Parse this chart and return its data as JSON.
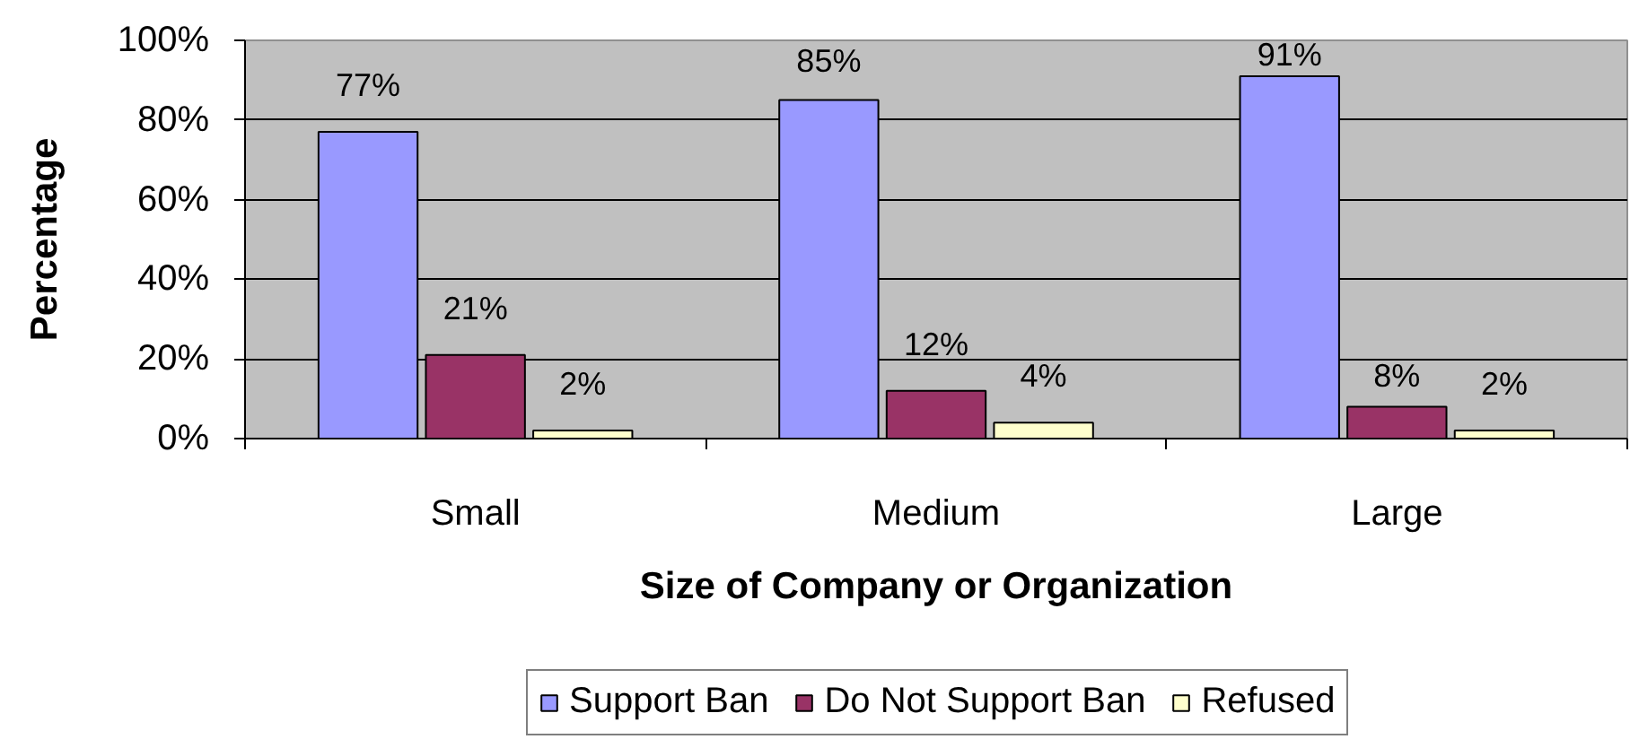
{
  "chart_data": {
    "type": "bar",
    "xlabel": "Size of Company or Organization",
    "ylabel": "Percentage",
    "categories": [
      "Small",
      "Medium",
      "Large"
    ],
    "series": [
      {
        "name": "Support Ban",
        "color": "#9999ff",
        "values": [
          77,
          85,
          91
        ],
        "value_labels": [
          "77%",
          "85%",
          "91%"
        ]
      },
      {
        "name": "Do Not Support Ban",
        "color": "#993366",
        "values": [
          21,
          12,
          8
        ],
        "value_labels": [
          "21%",
          "12%",
          "8%"
        ]
      },
      {
        "name": "Refused",
        "color": "#ffffcc",
        "values": [
          2,
          4,
          2
        ],
        "value_labels": [
          "2%",
          "4%",
          "2%"
        ]
      }
    ],
    "ylim": [
      0,
      100
    ],
    "yticks": [
      {
        "value": 0,
        "label": "0%"
      },
      {
        "value": 20,
        "label": "20%"
      },
      {
        "value": 40,
        "label": "40%"
      },
      {
        "value": 60,
        "label": "60%"
      },
      {
        "value": 80,
        "label": "80%"
      },
      {
        "value": 100,
        "label": "100%"
      }
    ],
    "grid": "y",
    "legend": "bottom"
  }
}
